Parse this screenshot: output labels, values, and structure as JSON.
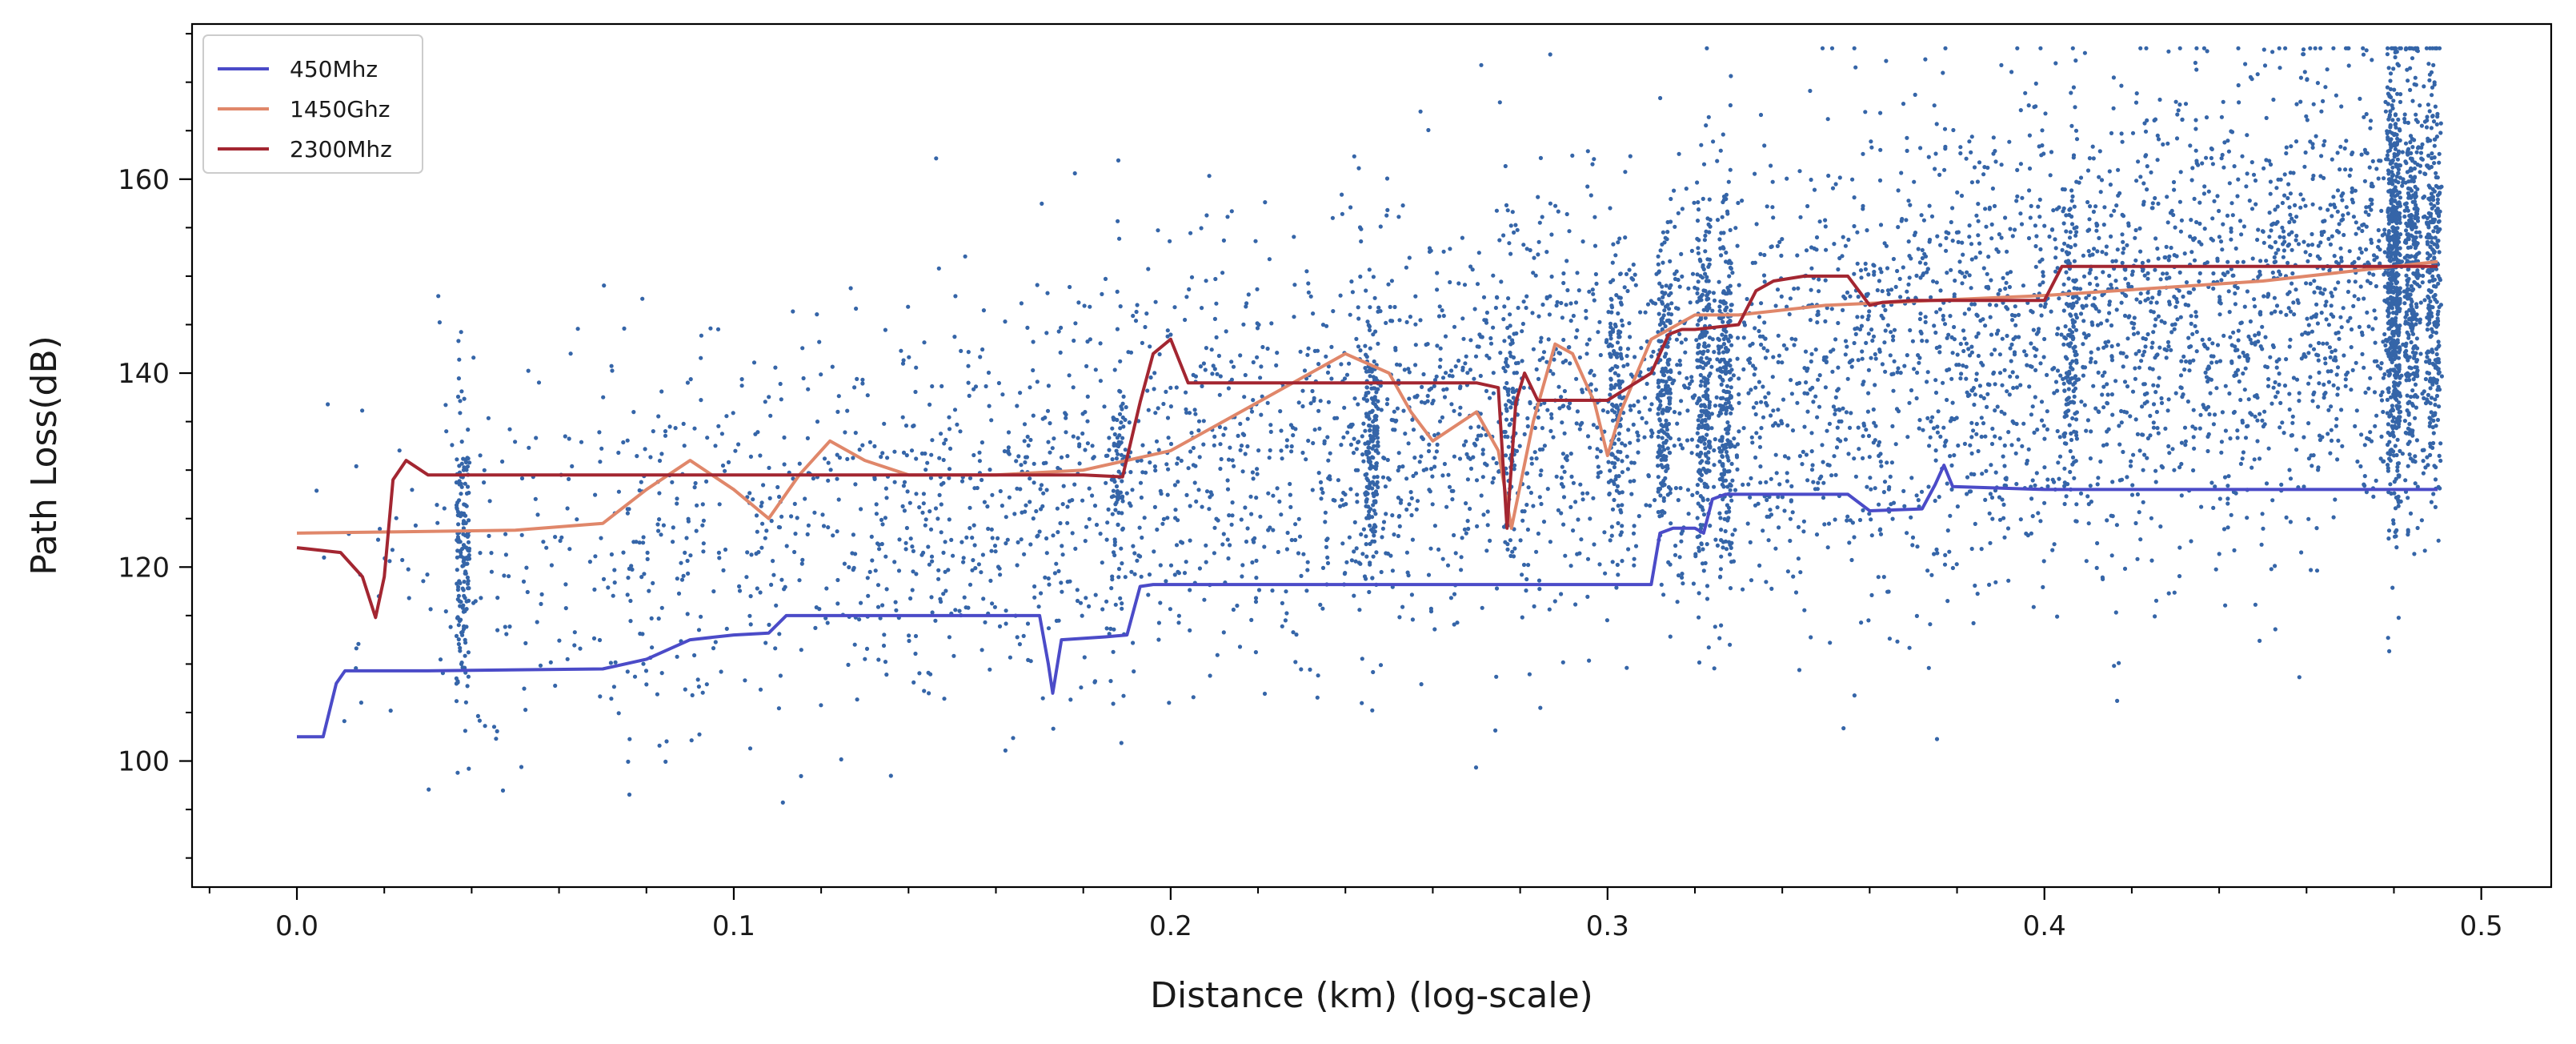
{
  "chart_data": {
    "type": "scatter",
    "title": "",
    "xlabel": "Distance (km) (log-scale)",
    "ylabel": "Path Loss(dB)",
    "xlim": [
      -0.024,
      0.516
    ],
    "ylim": [
      87,
      176
    ],
    "xticks": [
      0.0,
      0.1,
      0.2,
      0.3,
      0.4,
      0.5
    ],
    "xtick_labels": [
      "0.0",
      "0.1",
      "0.2",
      "0.3",
      "0.4",
      "0.5"
    ],
    "yticks": [
      100,
      120,
      140,
      160
    ],
    "ytick_labels": [
      "100",
      "120",
      "140",
      "160"
    ],
    "grid": false,
    "legend": {
      "location": "top-left"
    },
    "scatter": {
      "color": "#3565a8",
      "description_ranges": [
        {
          "x_range": [
            0.0,
            0.1
          ],
          "y_range": [
            90,
            160
          ]
        },
        {
          "x_range": [
            0.1,
            0.2
          ],
          "y_range": [
            96,
            163
          ]
        },
        {
          "x_range": [
            0.2,
            0.32
          ],
          "y_range": [
            97,
            167
          ]
        },
        {
          "x_range": [
            0.32,
            0.49
          ],
          "y_range": [
            96,
            173
          ]
        }
      ]
    },
    "series": [
      {
        "name": "450Mhz",
        "color": "#4b4bc8",
        "x": [
          0.0,
          0.006,
          0.009,
          0.011,
          0.03,
          0.07,
          0.08,
          0.09,
          0.1,
          0.108,
          0.112,
          0.12,
          0.17,
          0.172,
          0.173,
          0.175,
          0.185,
          0.19,
          0.193,
          0.196,
          0.2,
          0.25,
          0.31,
          0.312,
          0.315,
          0.32,
          0.322,
          0.324,
          0.327,
          0.33,
          0.355,
          0.36,
          0.372,
          0.375,
          0.377,
          0.379,
          0.4,
          0.45,
          0.49
        ],
        "y": [
          102.5,
          102.5,
          108,
          109.3,
          109.3,
          109.5,
          110.5,
          112.5,
          113,
          113.2,
          115,
          115,
          115,
          110,
          107,
          112.5,
          112.8,
          113,
          118,
          118.2,
          118.2,
          118.2,
          118.2,
          123.5,
          124,
          124,
          123.5,
          127,
          127.5,
          127.5,
          127.5,
          125.8,
          126,
          128.5,
          130.5,
          128.3,
          128,
          128,
          128
        ]
      },
      {
        "name": "1450Ghz",
        "color": "#e0876a",
        "x": [
          0.0,
          0.05,
          0.07,
          0.08,
          0.09,
          0.1,
          0.108,
          0.115,
          0.122,
          0.13,
          0.14,
          0.16,
          0.18,
          0.2,
          0.22,
          0.24,
          0.25,
          0.255,
          0.26,
          0.265,
          0.27,
          0.275,
          0.278,
          0.283,
          0.288,
          0.292,
          0.297,
          0.3,
          0.303,
          0.31,
          0.32,
          0.33,
          0.35,
          0.4,
          0.45,
          0.49
        ],
        "y": [
          123.5,
          123.8,
          124.5,
          128,
          131,
          128,
          125,
          129.5,
          133,
          131,
          129.5,
          129.5,
          130,
          132,
          137,
          142,
          140,
          136,
          133,
          134.5,
          136,
          132,
          124,
          135,
          143,
          142,
          137,
          131.5,
          136,
          143.5,
          146,
          146,
          147,
          148,
          149.5,
          151.5
        ]
      },
      {
        "name": "2300Mhz",
        "color": "#a32631",
        "x": [
          0.0,
          0.01,
          0.015,
          0.018,
          0.02,
          0.022,
          0.025,
          0.03,
          0.1,
          0.18,
          0.189,
          0.193,
          0.196,
          0.2,
          0.204,
          0.215,
          0.27,
          0.275,
          0.277,
          0.279,
          0.281,
          0.284,
          0.3,
          0.31,
          0.314,
          0.317,
          0.32,
          0.33,
          0.334,
          0.338,
          0.345,
          0.355,
          0.36,
          0.363,
          0.37,
          0.4,
          0.404,
          0.45,
          0.49
        ],
        "y": [
          122,
          121.5,
          119,
          114.8,
          119,
          129,
          131,
          129.5,
          129.5,
          129.5,
          129.3,
          137,
          142,
          143.5,
          139,
          139,
          139,
          138.5,
          124,
          137,
          140,
          137.2,
          137.2,
          140,
          144,
          144.5,
          144.5,
          145,
          148.5,
          149.5,
          150,
          150,
          147,
          147.3,
          147.5,
          147.5,
          151,
          151,
          151
        ]
      }
    ]
  }
}
